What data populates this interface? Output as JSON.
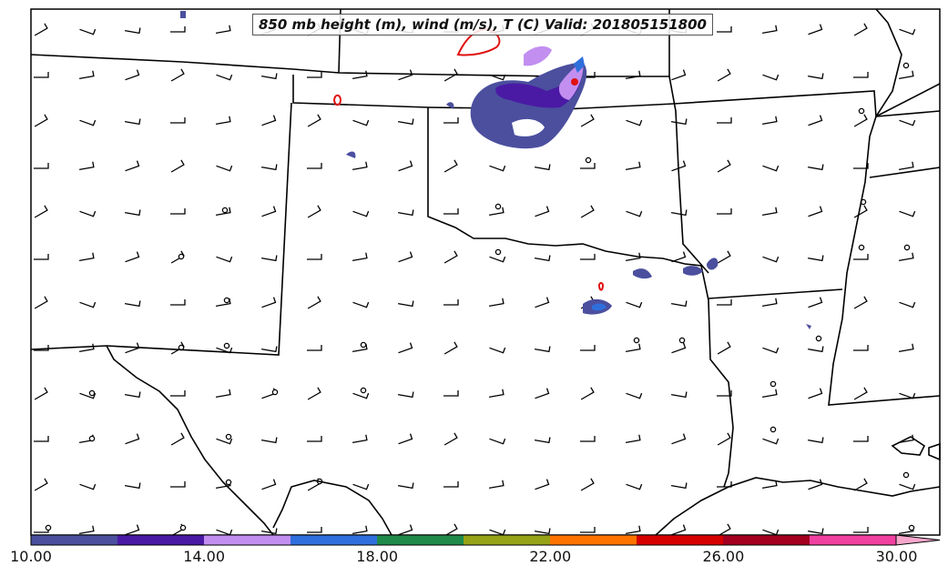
{
  "title": "850 mb height (m), wind (m/s), T (C) Valid: 201805151800",
  "colorbar": {
    "colors": [
      "#4b4f9e",
      "#4a1aa4",
      "#c28ff0",
      "#2f6fdc",
      "#1f8a4a",
      "#97a316",
      "#ff7400",
      "#d70000",
      "#a3001f",
      "#f040a0",
      "#f7a7cc"
    ],
    "tick_labels": [
      "10.00",
      "14.00",
      "18.00",
      "22.00",
      "26.00",
      "30.00"
    ],
    "tick_values": [
      10,
      14,
      18,
      22,
      26,
      30
    ],
    "range": [
      10,
      31
    ]
  },
  "colors": {
    "boundary": "#000000",
    "contour_red": "#e01010",
    "fill_low": "#4b4f9e",
    "fill_mid": "#4a1aa4",
    "fill_high": "#c28ff0"
  }
}
